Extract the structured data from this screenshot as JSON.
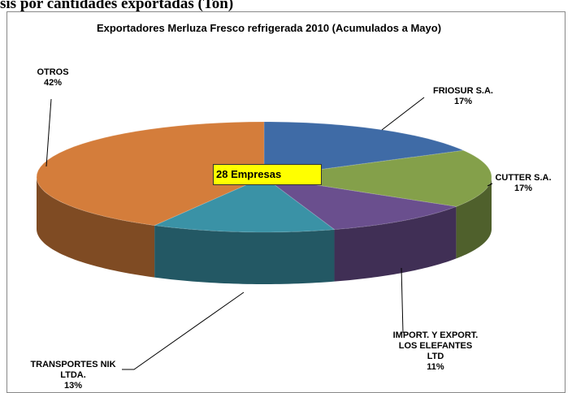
{
  "heading": "sis por cantidades exportadas (Ton)",
  "chart_data": {
    "type": "pie",
    "title": "Exportadores Merluza Fresco refrigerada 2010 (Acumulados a Mayo)",
    "annotation": "28 Empresas",
    "categories": [
      "FRIOSUR S.A.",
      "CUTTER S.A.",
      "IMPORT. Y EXPORT. LOS ELEFANTES LTD",
      "TRANSPORTES NIK LTDA.",
      "OTROS"
    ],
    "values": [
      17,
      17,
      11,
      13,
      42
    ],
    "value_labels": [
      "17%",
      "17%",
      "11%",
      "13%",
      "42%"
    ],
    "colors": [
      "#3f6ba6",
      "#84a04a",
      "#6a4f8e",
      "#3a92a6",
      "#d47d3b"
    ]
  }
}
